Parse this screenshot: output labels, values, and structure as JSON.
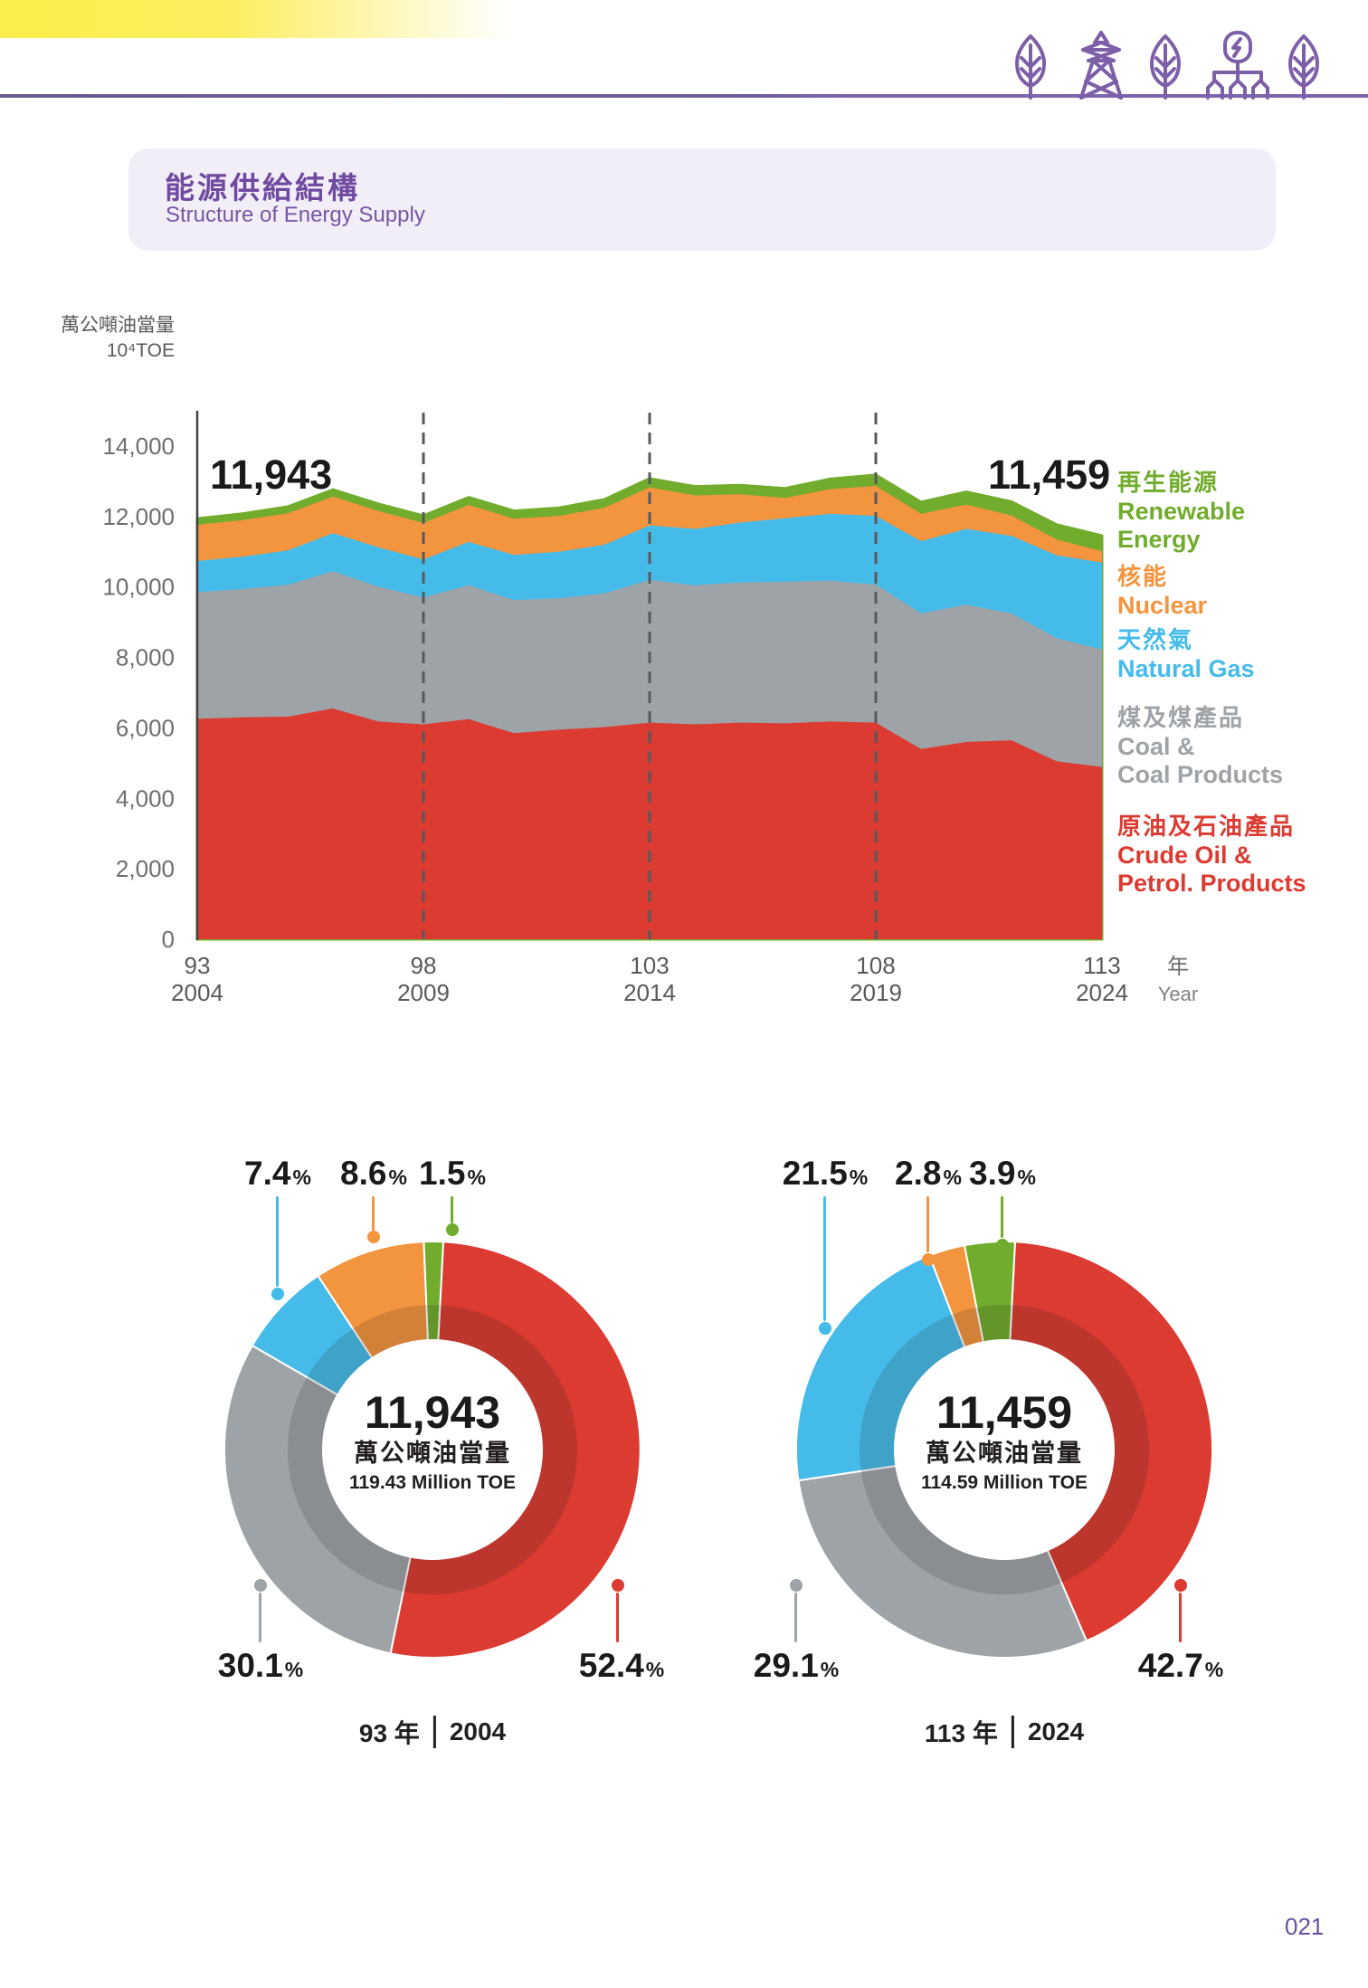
{
  "page": {
    "number": "021"
  },
  "pct_symbol": "%",
  "title_block": {
    "title_zh": "能源供給結構",
    "title_en": "Structure of Energy Supply"
  },
  "palette": {
    "crude": "#DB3B31",
    "coal": "#9EA3A7",
    "gas": "#45BBEA",
    "nuclear": "#F3943E",
    "renewable": "#71AC2D",
    "purple_accent": "#6F4AA0",
    "axis_gray": "#6D6E71"
  },
  "legend": {
    "items": [
      {
        "key": "renewable",
        "zh": "再生能源",
        "en": "Renewable\nEnergy"
      },
      {
        "key": "nuclear",
        "zh": "核能",
        "en": "Nuclear"
      },
      {
        "key": "gas",
        "zh": "天然氣",
        "en": "Natural Gas"
      },
      {
        "key": "coal",
        "zh": "煤及煤產品",
        "en": "Coal &\nCoal Products"
      },
      {
        "key": "crude",
        "zh": "原油及石油產品",
        "en": "Crude Oil &\nPetrol. Products"
      }
    ]
  },
  "chart_data": [
    {
      "id": "energy-supply-structure-area",
      "type": "area",
      "stacked": true,
      "unit_label_zh": "萬公噸油當量",
      "unit_label_en": "10⁴TOE",
      "x_years_roc": [
        93,
        94,
        95,
        96,
        97,
        98,
        99,
        100,
        101,
        102,
        103,
        104,
        105,
        106,
        107,
        108,
        109,
        110,
        111,
        112,
        113
      ],
      "x_years_ad": [
        2004,
        2005,
        2006,
        2007,
        2008,
        2009,
        2010,
        2011,
        2012,
        2013,
        2014,
        2015,
        2016,
        2017,
        2018,
        2019,
        2020,
        2021,
        2022,
        2023,
        2024
      ],
      "x_ticks": [
        {
          "roc": "93",
          "ad": "2004"
        },
        {
          "roc": "98",
          "ad": "2009"
        },
        {
          "roc": "103",
          "ad": "2014"
        },
        {
          "roc": "108",
          "ad": "2019"
        },
        {
          "roc": "113",
          "ad": "2024"
        }
      ],
      "x_axis_suffix": {
        "zh": "年",
        "en": "Year"
      },
      "dashed_guide_years_roc": [
        98,
        103,
        108
      ],
      "ylim": [
        0,
        14000
      ],
      "grid": false,
      "legend_position": "right",
      "yticks": [
        {
          "v": 0,
          "label": "0"
        },
        {
          "v": 2000,
          "label": "2,000"
        },
        {
          "v": 4000,
          "label": "4,000"
        },
        {
          "v": 6000,
          "label": "6,000"
        },
        {
          "v": 8000,
          "label": "8,000"
        },
        {
          "v": 10000,
          "label": "10,000"
        },
        {
          "v": 12000,
          "label": "12,000"
        },
        {
          "v": 14000,
          "label": "14,000"
        }
      ],
      "series": [
        {
          "key": "crude",
          "name_zh": "原油及石油產品",
          "name_en": "Crude Oil & Petrol. Products",
          "values": [
            6258,
            6300,
            6320,
            6550,
            6180,
            6100,
            6250,
            5850,
            5950,
            6020,
            6150,
            6100,
            6150,
            6130,
            6180,
            6150,
            5400,
            5600,
            5650,
            5050,
            4892
          ]
        },
        {
          "key": "coal",
          "name_zh": "煤及煤產品",
          "name_en": "Coal & Coal Products",
          "values": [
            3595,
            3640,
            3740,
            3900,
            3830,
            3600,
            3800,
            3780,
            3730,
            3800,
            4050,
            3950,
            3980,
            4020,
            4000,
            3920,
            3850,
            3900,
            3600,
            3500,
            3335
          ]
        },
        {
          "key": "gas",
          "name_zh": "天然氣",
          "name_en": "Natural Gas",
          "values": [
            884,
            920,
            980,
            1080,
            1120,
            1080,
            1230,
            1280,
            1320,
            1380,
            1550,
            1600,
            1700,
            1800,
            1900,
            1950,
            2050,
            2150,
            2200,
            2350,
            2464
          ]
        },
        {
          "key": "nuclear",
          "name_zh": "核能",
          "name_en": "Nuclear",
          "values": [
            1027,
            1040,
            1050,
            1040,
            1030,
            1040,
            1050,
            1030,
            1020,
            1050,
            1080,
            950,
            800,
            580,
            700,
            850,
            780,
            690,
            580,
            450,
            321
          ]
        },
        {
          "key": "renewable",
          "name_zh": "再生能源",
          "name_en": "Renewable Energy",
          "values": [
            179,
            182,
            188,
            195,
            200,
            205,
            215,
            220,
            228,
            235,
            250,
            255,
            260,
            270,
            290,
            310,
            330,
            360,
            390,
            420,
            447
          ]
        }
      ],
      "annotations": [
        {
          "text": "11,943",
          "year_roc": 93
        },
        {
          "text": "11,459",
          "year_roc": 113
        }
      ]
    },
    {
      "id": "supply-share-2004",
      "type": "pie",
      "title": {
        "roc": "93 年",
        "ad": "2004"
      },
      "center": {
        "value": "11,943",
        "unit_zh": "萬公噸油當量",
        "unit_en": "119.43 Million TOE"
      },
      "slices": [
        {
          "key": "crude",
          "pct": 52.4
        },
        {
          "key": "coal",
          "pct": 30.1
        },
        {
          "key": "gas",
          "pct": 7.4
        },
        {
          "key": "nuclear",
          "pct": 8.6
        },
        {
          "key": "renewable",
          "pct": 1.5
        }
      ]
    },
    {
      "id": "supply-share-2024",
      "type": "pie",
      "title": {
        "roc": "113 年",
        "ad": "2024"
      },
      "center": {
        "value": "11,459",
        "unit_zh": "萬公噸油當量",
        "unit_en": "114.59 Million TOE"
      },
      "slices": [
        {
          "key": "crude",
          "pct": 42.7
        },
        {
          "key": "coal",
          "pct": 29.1
        },
        {
          "key": "gas",
          "pct": 21.5
        },
        {
          "key": "nuclear",
          "pct": 2.8
        },
        {
          "key": "renewable",
          "pct": 3.9
        }
      ]
    }
  ]
}
